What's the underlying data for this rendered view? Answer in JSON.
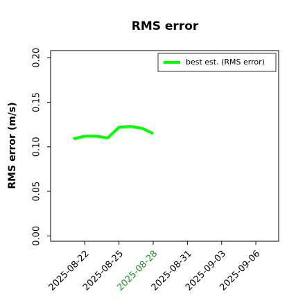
{
  "chart_data": {
    "type": "line",
    "title": "RMS error",
    "y_label": "RMS error (m/s)",
    "x": [
      "2025-08-21",
      "2025-08-22",
      "2025-08-23",
      "2025-08-24",
      "2025-08-25",
      "2025-08-26",
      "2025-08-27",
      "2025-08-28"
    ],
    "series": [
      {
        "name": "best est. (RMS error)",
        "color": "#00ff00",
        "values": [
          0.109,
          0.112,
          0.112,
          0.11,
          0.122,
          0.123,
          0.121,
          0.115
        ]
      }
    ],
    "xlim": [
      "2025-08-19",
      "2025-09-08"
    ],
    "xticks": [
      "2025-08-22",
      "2025-08-25",
      "2025-08-28",
      "2025-08-31",
      "2025-09-03",
      "2025-09-06"
    ],
    "highlight_xtick": 2,
    "highlight_color": "#228b22",
    "ylim": [
      -0.006,
      0.208
    ],
    "yticks": [
      {
        "value": 0,
        "label": "0.00"
      },
      {
        "value": 0.05,
        "label": "0.05"
      },
      {
        "value": 0.1,
        "label": "0.10"
      },
      {
        "value": 0.15,
        "label": "0.15"
      },
      {
        "value": 0.2,
        "label": "0.20"
      }
    ],
    "legend": "upper right",
    "grid": false
  }
}
